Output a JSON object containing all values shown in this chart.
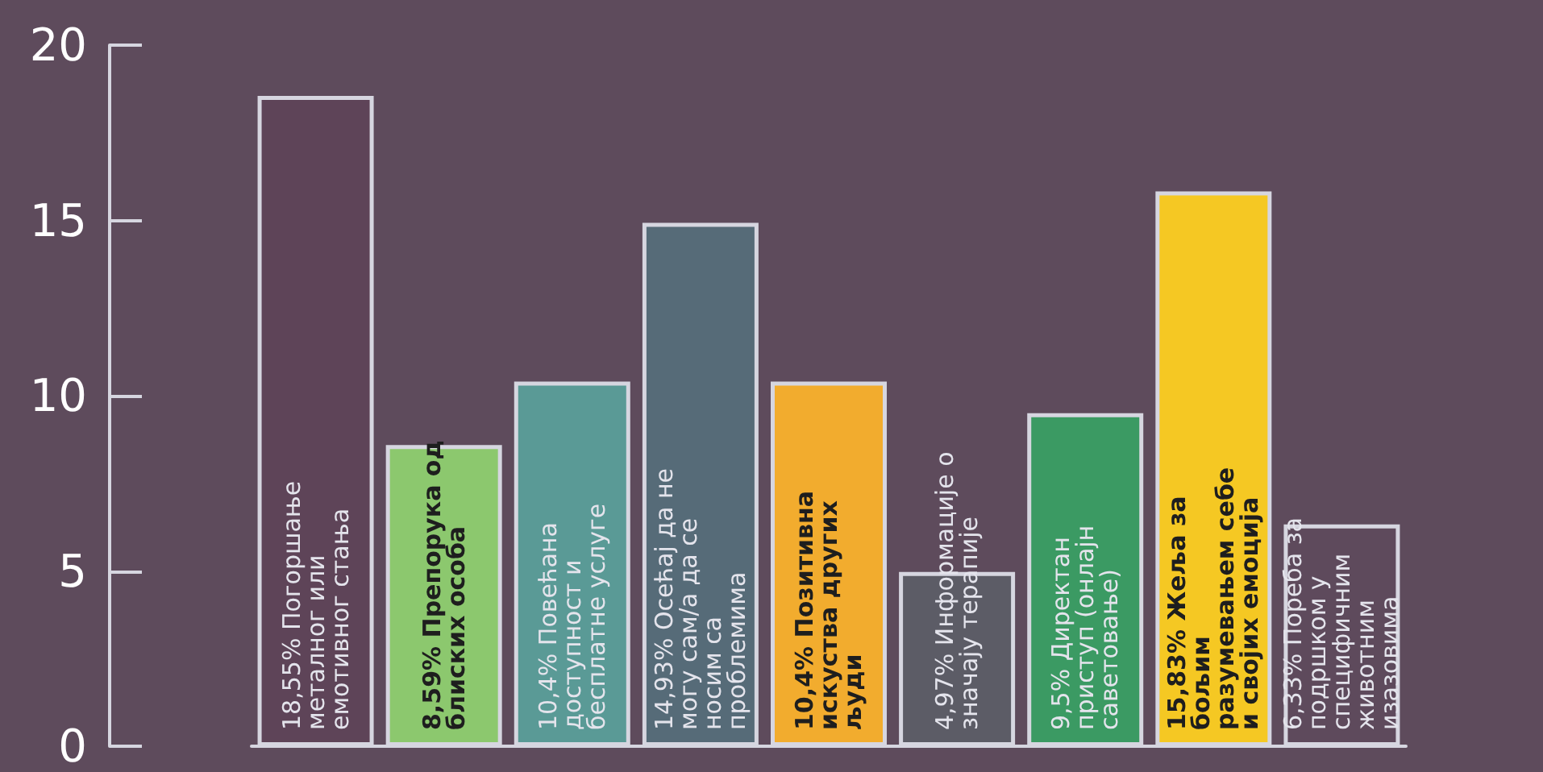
{
  "chart_data": {
    "type": "bar",
    "categories": [
      "Погоршање металног или емотивног стања",
      "Препорука од блиских особа",
      "Повећана доступност и бесплатне услуге",
      "Осећај да не могу сам/а да се носим са проблемима",
      "Позитивна искуства других људи",
      "Информације о значају терапије",
      "Директан приступ (онлајн саветовање)",
      "Жеља за бољим разумевањем себе и својих емоција",
      "Пореба за подршком у специфичним животним изазовима"
    ],
    "values": [
      18.55,
      8.59,
      10.4,
      14.93,
      10.4,
      4.97,
      9.5,
      15.83,
      6.33
    ],
    "value_labels": [
      "18,55%",
      "8,59%",
      "10,4%",
      "14,93%",
      "10,4%",
      "4,97%",
      "9,5%",
      "15,83%",
      "6,33%"
    ],
    "colors": [
      "#5e4458",
      "#8cc86e",
      "#5a9a96",
      "#566b78",
      "#f2ac2e",
      "#5c5c66",
      "#3b9a63",
      "#f5c823",
      "#5e4a5c"
    ],
    "ylim": [
      0,
      20
    ],
    "yticks": [
      0,
      5,
      10,
      15,
      20
    ],
    "grid": false
  }
}
